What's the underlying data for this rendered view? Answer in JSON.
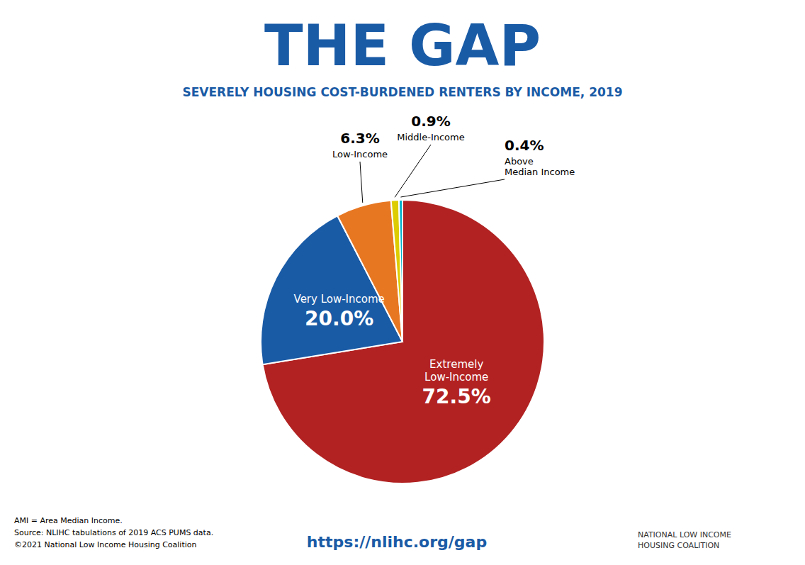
{
  "chart_data": {
    "type": "pie",
    "title": "THE GAP",
    "subtitle": "SEVERELY HOUSING COST-BURDENED RENTERS BY INCOME, 2019",
    "categories": [
      "Extremely\nLow-Income",
      "Very Low-Income",
      "Low-Income",
      "Middle-Income",
      "Above\nMedian Income"
    ],
    "values": [
      72.5,
      20.0,
      6.3,
      0.9,
      0.4
    ],
    "value_labels": [
      "72.5%",
      "20.0%",
      "6.3%",
      "0.9%",
      "0.4%"
    ],
    "colors": [
      "#B22222",
      "#1A5BA6",
      "#E87722",
      "#DDCC00",
      "#00B0C8"
    ],
    "data_labels": true,
    "annotations": [
      "AMI = Area Median Income.",
      "Source: NLIHC tabulations of 2019 ACS PUMS data.",
      "©2021 National Low Income Housing Coalition",
      "https://nlihc.org/gap",
      "NATIONAL LOW INCOME\nHOUSING COALITION"
    ]
  }
}
